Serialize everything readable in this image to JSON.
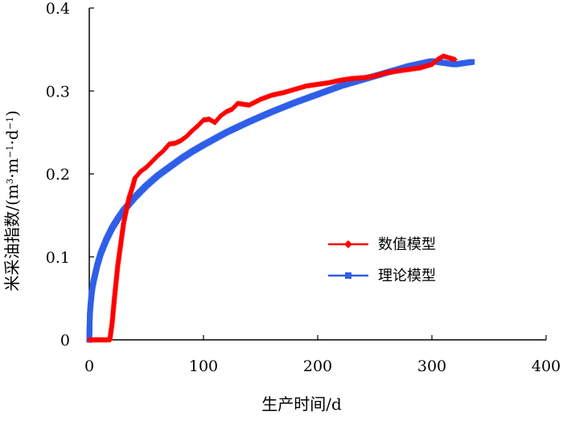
{
  "chart_data": {
    "type": "line",
    "title": "",
    "xlabel": "生产时间/d",
    "ylabel_main": "米采油指数/",
    "ylabel_unit": {
      "open": "(",
      "m1": "m",
      "sup1": "3",
      "dot1": "·",
      "m2": "m",
      "sup2": "−1",
      "dot2": "·",
      "d": "d",
      "sup3": "−1",
      "close": ")"
    },
    "xlim": [
      0,
      400
    ],
    "ylim": [
      0,
      0.4
    ],
    "xticks": [
      0,
      100,
      200,
      300,
      400
    ],
    "xtick_labels": [
      "0",
      "100",
      "200",
      "300",
      "400"
    ],
    "yticks": [
      0,
      0.1,
      0.2,
      0.3,
      0.4
    ],
    "ytick_labels": [
      "0",
      "0.1",
      "0.2",
      "0.3",
      "0.4"
    ],
    "grid": false,
    "legend_position": "center-right",
    "series": [
      {
        "name": "数值模型",
        "color": "#ff0000",
        "marker": "diamond",
        "x": [
          0,
          5,
          10,
          15,
          18,
          20,
          22,
          25,
          28,
          30,
          33,
          35,
          38,
          40,
          45,
          50,
          55,
          60,
          65,
          70,
          75,
          80,
          85,
          90,
          95,
          100,
          105,
          110,
          115,
          120,
          125,
          130,
          140,
          150,
          160,
          170,
          180,
          190,
          200,
          210,
          220,
          230,
          240,
          250,
          260,
          270,
          280,
          290,
          300,
          305,
          310,
          315,
          320
        ],
        "y": [
          0,
          0,
          0,
          0,
          0,
          0.02,
          0.05,
          0.09,
          0.12,
          0.14,
          0.16,
          0.172,
          0.185,
          0.195,
          0.203,
          0.208,
          0.215,
          0.222,
          0.228,
          0.236,
          0.237,
          0.24,
          0.245,
          0.252,
          0.258,
          0.265,
          0.266,
          0.262,
          0.27,
          0.275,
          0.278,
          0.285,
          0.283,
          0.29,
          0.295,
          0.298,
          0.302,
          0.306,
          0.308,
          0.31,
          0.313,
          0.315,
          0.316,
          0.318,
          0.322,
          0.324,
          0.326,
          0.328,
          0.332,
          0.338,
          0.342,
          0.34,
          0.338
        ]
      },
      {
        "name": "理论模型",
        "color": "#2f5fe8",
        "marker": "square",
        "x": [
          0,
          0.5,
          1,
          2,
          3,
          4,
          5,
          7,
          10,
          15,
          20,
          25,
          30,
          40,
          50,
          60,
          70,
          80,
          90,
          100,
          120,
          140,
          160,
          180,
          200,
          220,
          240,
          260,
          280,
          300,
          320,
          335
        ],
        "y": [
          0,
          0.03,
          0.04,
          0.055,
          0.065,
          0.072,
          0.078,
          0.09,
          0.104,
          0.121,
          0.135,
          0.146,
          0.156,
          0.172,
          0.186,
          0.198,
          0.208,
          0.218,
          0.227,
          0.235,
          0.25,
          0.263,
          0.275,
          0.286,
          0.296,
          0.306,
          0.314,
          0.322,
          0.33,
          0.336,
          0.332,
          0.335
        ]
      }
    ]
  }
}
